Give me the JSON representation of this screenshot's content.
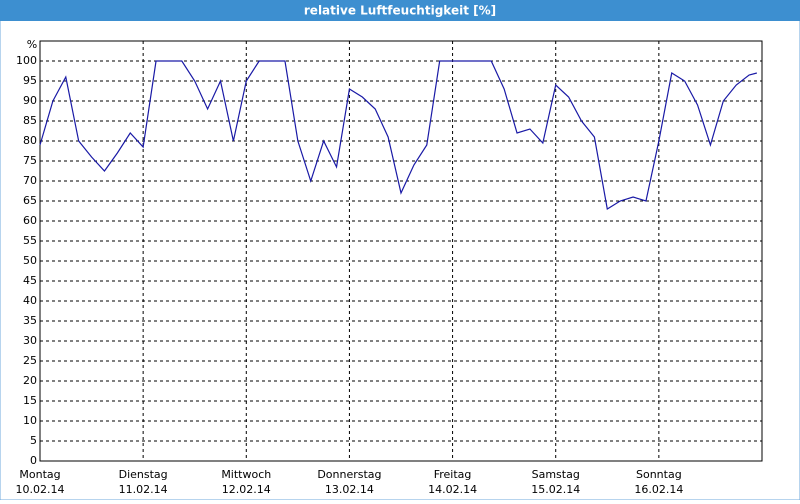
{
  "chart_data": {
    "type": "line",
    "title": "relative Luftfeuchtigkeit [%]",
    "ylabel": "%",
    "xlim": [
      0,
      7
    ],
    "xticks": [
      {
        "value": 0,
        "label": "Montag"
      },
      {
        "value": 1,
        "label": "Dienstag"
      },
      {
        "value": 2,
        "label": "Mittwoch"
      },
      {
        "value": 3,
        "label": "Donnerstag"
      },
      {
        "value": 4,
        "label": "Freitag"
      },
      {
        "value": 5,
        "label": "Samstag"
      },
      {
        "value": 6,
        "label": "Sonntag"
      }
    ],
    "xtick_dates": [
      "10.02.14",
      "11.02.14",
      "12.02.14",
      "13.02.14",
      "14.02.14",
      "15.02.14",
      "16.02.14"
    ],
    "ylim": [
      0,
      105
    ],
    "yticks": [
      0,
      5,
      10,
      15,
      20,
      25,
      30,
      35,
      40,
      45,
      50,
      55,
      60,
      65,
      70,
      75,
      80,
      85,
      90,
      95,
      100
    ],
    "grid": true,
    "x": [
      0,
      0.125,
      0.25,
      0.375,
      0.5,
      0.625,
      0.75,
      0.875,
      1,
      1.125,
      1.25,
      1.375,
      1.5,
      1.625,
      1.75,
      1.875,
      2,
      2.125,
      2.25,
      2.375,
      2.5,
      2.625,
      2.75,
      2.875,
      3,
      3.125,
      3.25,
      3.375,
      3.5,
      3.625,
      3.75,
      3.875,
      4,
      4.125,
      4.25,
      4.375,
      4.5,
      4.625,
      4.75,
      4.875,
      5,
      5.125,
      5.25,
      5.375,
      5.5,
      5.625,
      5.75,
      5.875,
      6,
      6.125,
      6.25,
      6.375,
      6.5,
      6.625,
      6.75,
      6.875,
      6.95
    ],
    "series": [
      {
        "name": "relative Luftfeuchtigkeit",
        "color": "#1a1aa6",
        "values": [
          79,
          90,
          96,
          80,
          76,
          72.5,
          77,
          82,
          78.5,
          100,
          100,
          100,
          95,
          88,
          95,
          80,
          95,
          100,
          100,
          100,
          80,
          70,
          80,
          73.5,
          93,
          91,
          88,
          81,
          67,
          74,
          79,
          100,
          100,
          100,
          100,
          100,
          93,
          82,
          83,
          79.5,
          94,
          91,
          85,
          81,
          63,
          65,
          66,
          65,
          80,
          97,
          95,
          89,
          79,
          90,
          94,
          96.5,
          97
        ]
      }
    ]
  }
}
